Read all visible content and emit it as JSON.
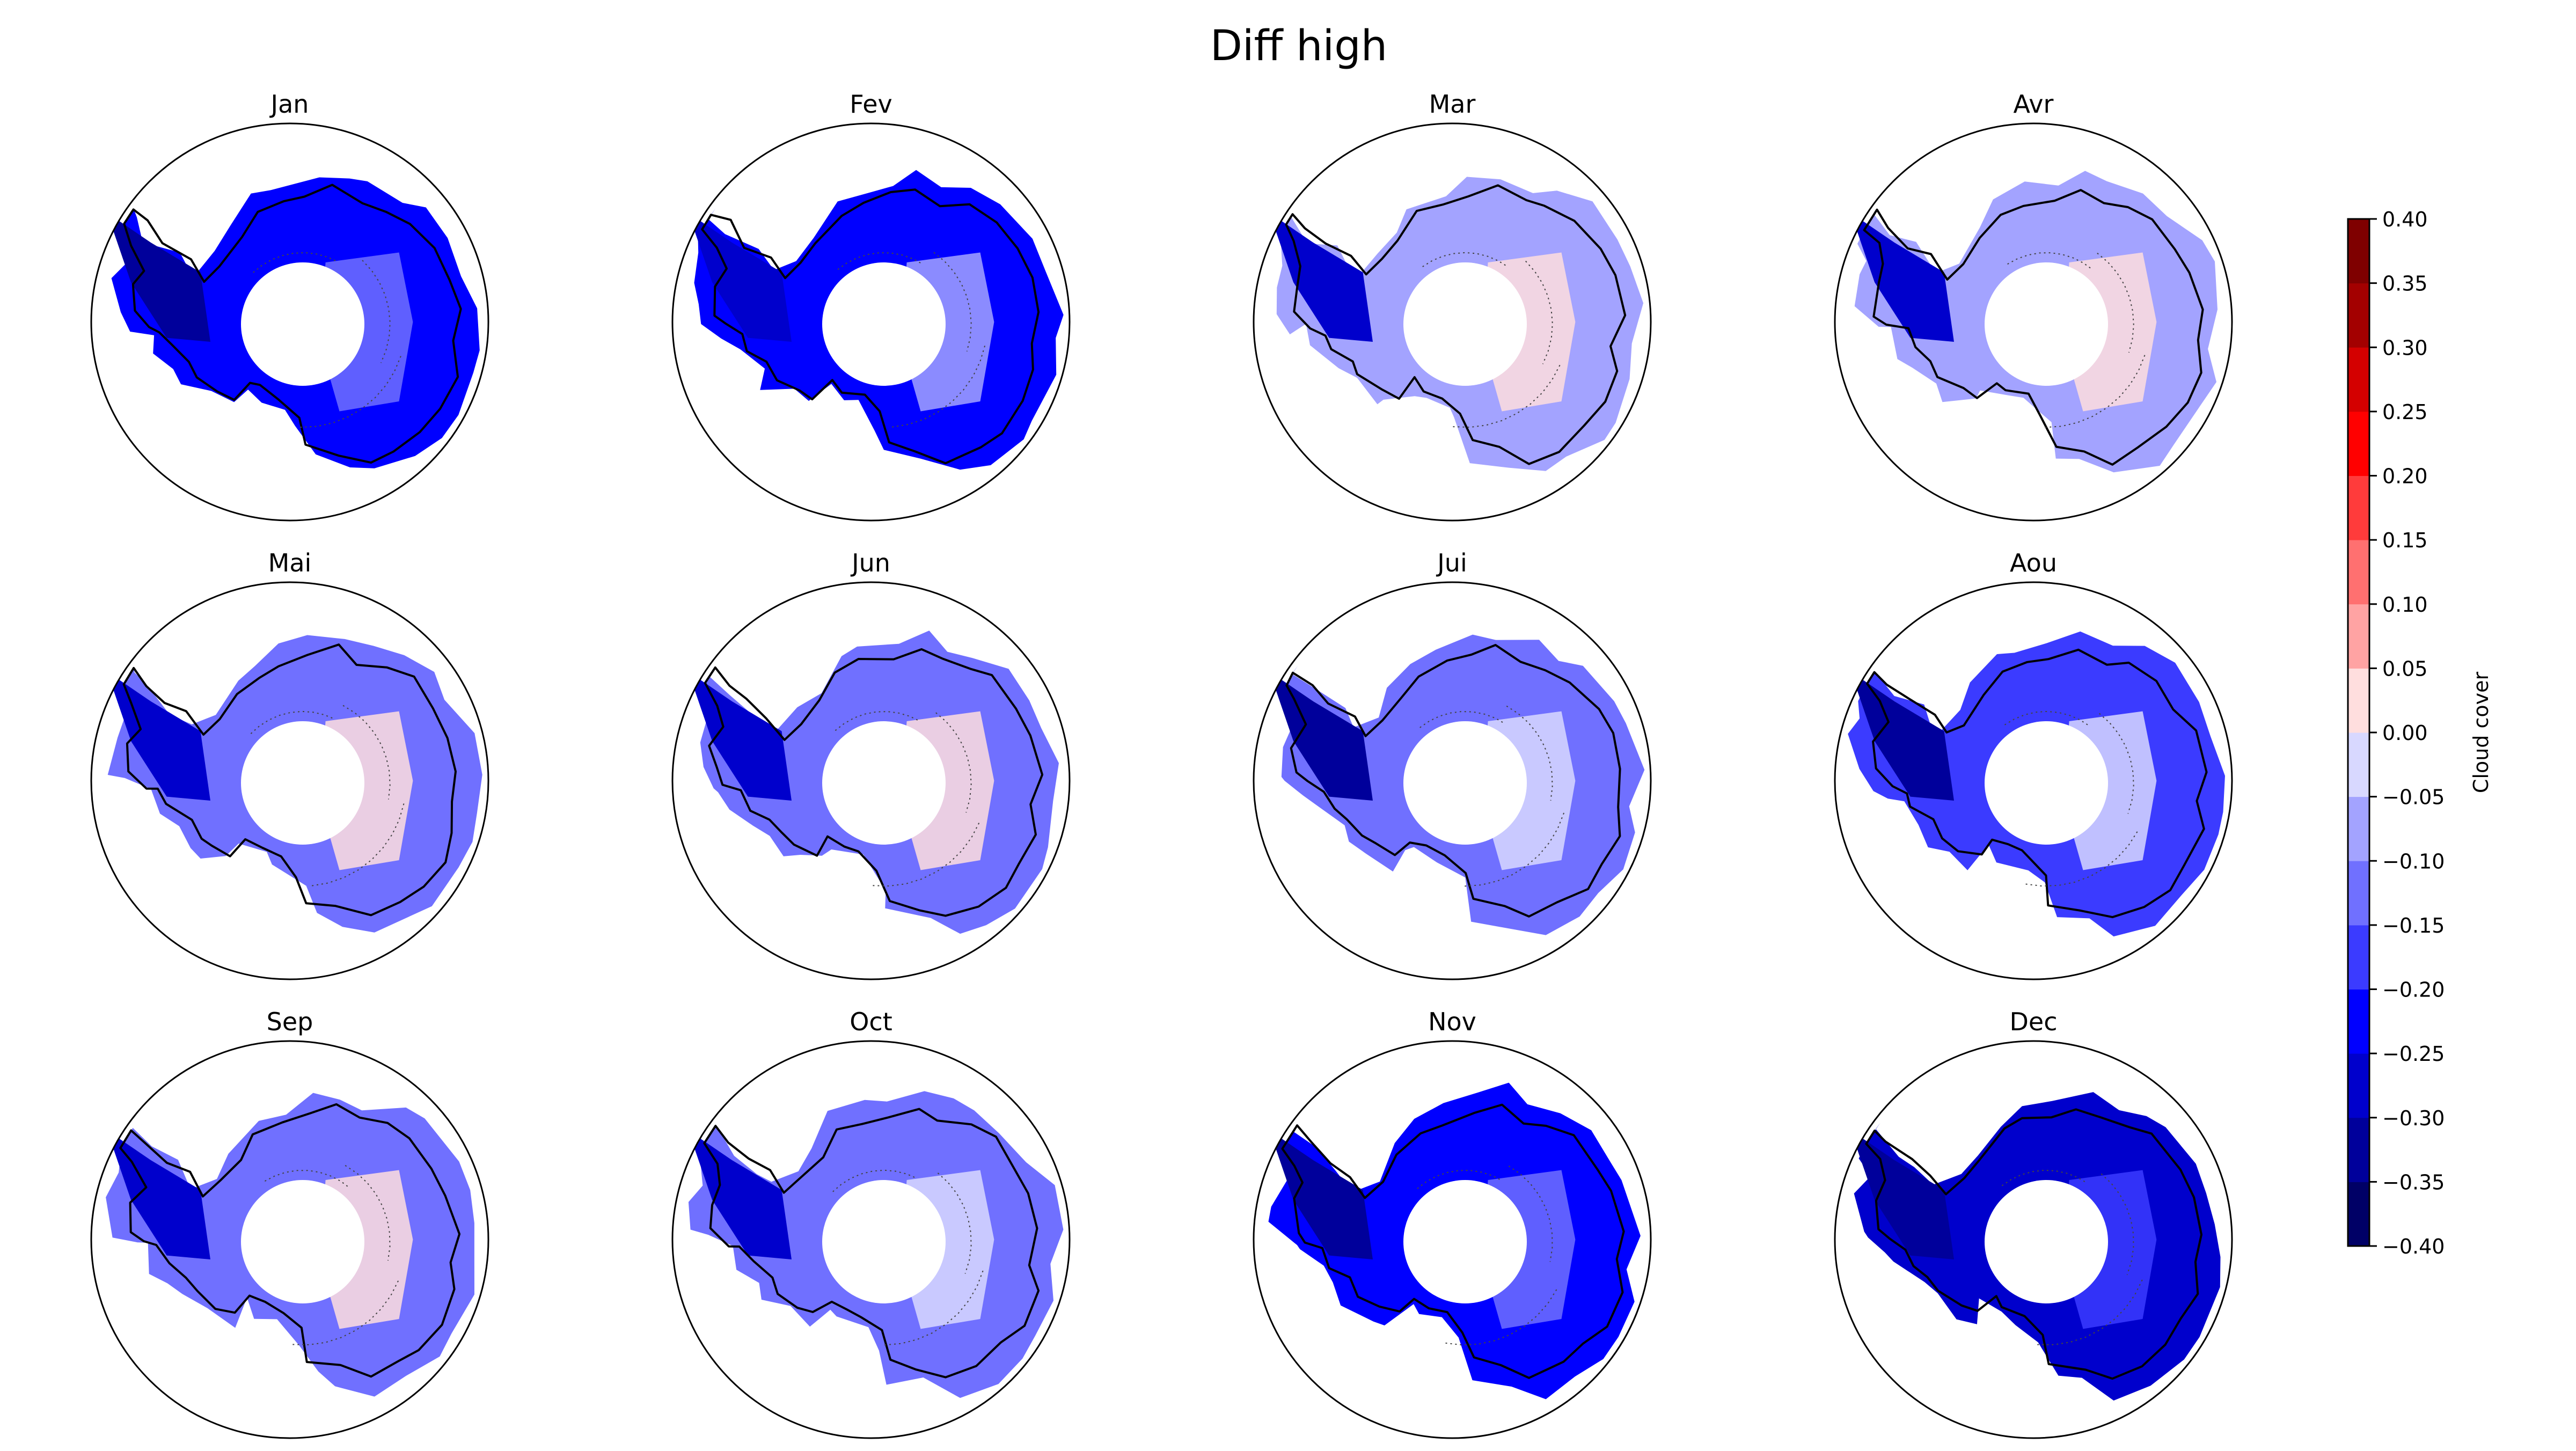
{
  "figure": {
    "title": "Diff high"
  },
  "colorbar": {
    "label": "Cloud cover",
    "min": -0.4,
    "max": 0.4,
    "ticks": [
      "0.40",
      "0.35",
      "0.30",
      "0.25",
      "0.20",
      "0.15",
      "0.10",
      "0.05",
      "0.00",
      "−0.05",
      "−0.10",
      "−0.15",
      "−0.20",
      "−0.25",
      "−0.30",
      "−0.35",
      "−0.40"
    ],
    "colors": [
      "#000066",
      "#00009b",
      "#0000cc",
      "#0000ff",
      "#3b3bff",
      "#7070ff",
      "#a3a3ff",
      "#d8d8ff",
      "#ffdede",
      "#ffa3a3",
      "#ff7070",
      "#ff3b3b",
      "#ff0000",
      "#d40000",
      "#a30000",
      "#7f0000"
    ]
  },
  "chart_data": {
    "type": "heatmap",
    "title": "Diff high",
    "variable": "Cloud cover",
    "projection": "south-polar stereographic",
    "color_range": [
      -0.4,
      0.4
    ],
    "contour_interval": 0.05,
    "panels": [
      {
        "month": "Jan",
        "typical_value": -0.25,
        "min_value": -0.35,
        "max_value": -0.15
      },
      {
        "month": "Fev",
        "typical_value": -0.22,
        "min_value": -0.3,
        "max_value": -0.1
      },
      {
        "month": "Mar",
        "typical_value": -0.08,
        "min_value": -0.3,
        "max_value": 0.03
      },
      {
        "month": "Avr",
        "typical_value": -0.07,
        "min_value": -0.3,
        "max_value": 0.03
      },
      {
        "month": "Mai",
        "typical_value": -0.12,
        "min_value": -0.3,
        "max_value": 0.03
      },
      {
        "month": "Jun",
        "typical_value": -0.13,
        "min_value": -0.3,
        "max_value": 0.0
      },
      {
        "month": "Jui",
        "typical_value": -0.15,
        "min_value": -0.32,
        "max_value": -0.02
      },
      {
        "month": "Aou",
        "typical_value": -0.16,
        "min_value": -0.32,
        "max_value": -0.05
      },
      {
        "month": "Sep",
        "typical_value": -0.12,
        "min_value": -0.3,
        "max_value": 0.02
      },
      {
        "month": "Oct",
        "typical_value": -0.13,
        "min_value": -0.3,
        "max_value": -0.02
      },
      {
        "month": "Nov",
        "typical_value": -0.24,
        "min_value": -0.32,
        "max_value": -0.15
      },
      {
        "month": "Dec",
        "typical_value": -0.27,
        "min_value": -0.35,
        "max_value": -0.2
      }
    ]
  }
}
